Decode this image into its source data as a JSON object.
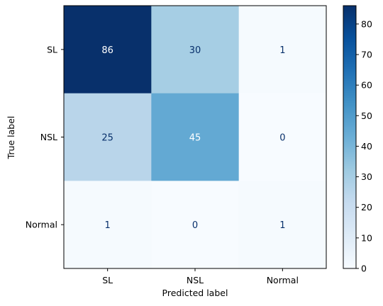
{
  "chart_data": {
    "type": "heatmap",
    "title": "",
    "xlabel": "Predicted label",
    "ylabel": "True label",
    "x_categories": [
      "SL",
      "NSL",
      "Normal"
    ],
    "y_categories": [
      "SL",
      "NSL",
      "Normal"
    ],
    "values": [
      [
        86,
        30,
        1
      ],
      [
        25,
        45,
        0
      ],
      [
        1,
        0,
        1
      ]
    ],
    "colormap": "Blues",
    "color_range": [
      0,
      86
    ],
    "colorbar_ticks": [
      "0",
      "10",
      "20",
      "30",
      "40",
      "50",
      "60",
      "70",
      "80"
    ],
    "text_colors": {
      "dark_cell": "#ffffff",
      "light_cell": "#08306b"
    }
  }
}
